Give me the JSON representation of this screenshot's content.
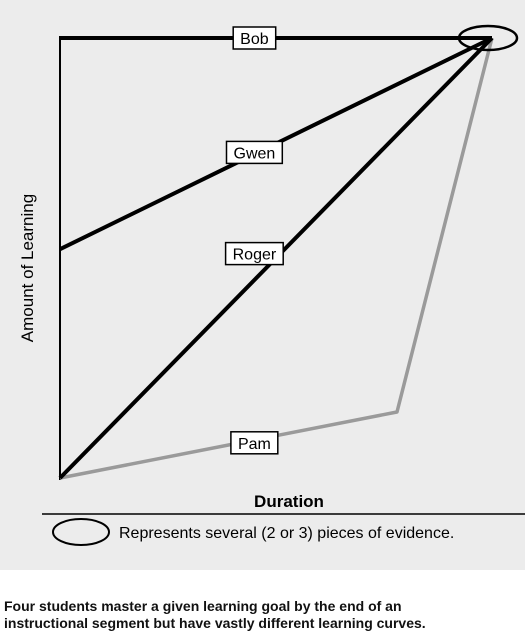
{
  "chart_data": {
    "type": "line",
    "xlabel": "Duration",
    "ylabel": "Amount of Learning",
    "xlim": [
      0,
      100
    ],
    "ylim": [
      0,
      100
    ],
    "grid": false,
    "series": [
      {
        "name": "Bob",
        "color": "#000000",
        "x": [
          0,
          100
        ],
        "y": [
          100,
          100
        ],
        "label_at": [
          45,
          100
        ]
      },
      {
        "name": "Gwen",
        "color": "#000000",
        "x": [
          0,
          100
        ],
        "y": [
          52,
          100
        ],
        "label_at": [
          45,
          74
        ]
      },
      {
        "name": "Roger",
        "color": "#000000",
        "x": [
          0,
          100
        ],
        "y": [
          0,
          100
        ],
        "label_at": [
          45,
          51
        ]
      },
      {
        "name": "Pam",
        "color": "#9a9a9a",
        "x": [
          0,
          78,
          100
        ],
        "y": [
          0,
          15,
          100
        ],
        "label_at": [
          45,
          8
        ]
      }
    ],
    "endpoint_marker": {
      "x": 100,
      "y": 100,
      "shape": "ellipse"
    },
    "legend": {
      "symbol": "ellipse",
      "text": "Represents several (2 or 3) pieces of evidence."
    }
  },
  "caption": {
    "line1": "Four students master a given learning goal by the end of an",
    "line2": "instructional segment but have vastly different learning curves."
  }
}
